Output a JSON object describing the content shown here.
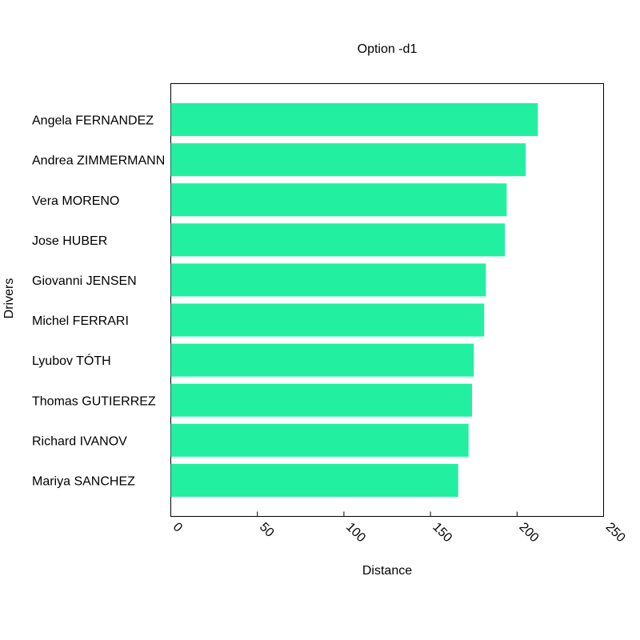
{
  "chart_data": {
    "type": "bar",
    "orientation": "horizontal",
    "title": "Option -d1",
    "xlabel": "Distance",
    "ylabel": "Drivers",
    "xlim": [
      0,
      250
    ],
    "xticks": [
      0,
      50,
      100,
      150,
      200,
      250
    ],
    "grid": false,
    "bar_color": "#22f0a0",
    "categories": [
      "Angela FERNANDEZ",
      "Andrea ZIMMERMANN",
      "Vera MORENO",
      "Jose HUBER",
      "Giovanni JENSEN",
      "Michel FERRARI",
      "Lyubov TÓTH",
      "Thomas GUTIERREZ",
      "Richard IVANOV",
      "Mariya SANCHEZ"
    ],
    "values": [
      212,
      205,
      194,
      193,
      182,
      181,
      175,
      174,
      172,
      166
    ]
  }
}
